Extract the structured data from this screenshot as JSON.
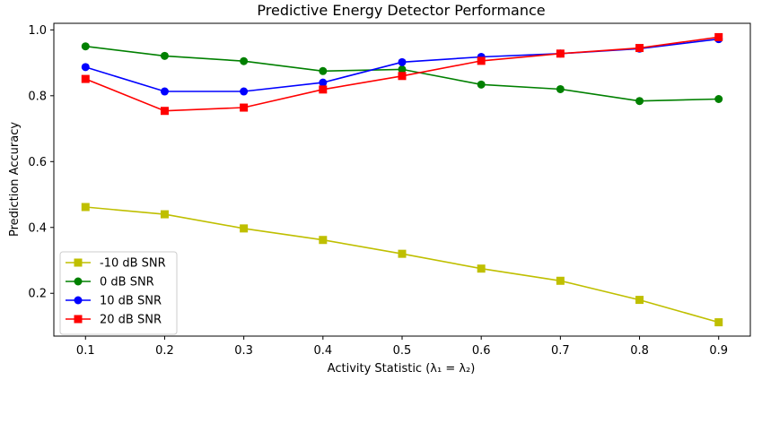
{
  "chart_data": {
    "type": "line",
    "title": "Predictive Energy Detector Performance",
    "xlabel": "Activity Statistic (λ₁ = λ₂)",
    "ylabel": "Prediction Accuracy",
    "x": [
      0.1,
      0.2,
      0.3,
      0.4,
      0.5,
      0.6,
      0.7,
      0.8,
      0.9
    ],
    "x_tick_labels": [
      "0.1",
      "0.2",
      "0.3",
      "0.4",
      "0.5",
      "0.6",
      "0.7",
      "0.8",
      "0.9"
    ],
    "y_tick_values": [
      0.2,
      0.4,
      0.6,
      0.8,
      1.0
    ],
    "y_tick_labels": [
      "0.2",
      "0.4",
      "0.6",
      "0.8",
      "1.0"
    ],
    "xlim": [
      0.06,
      0.94
    ],
    "ylim": [
      0.07,
      1.02
    ],
    "grid": false,
    "legend_position": "lower-left",
    "series": [
      {
        "name": "-10 dB SNR",
        "color": "#bfbf00",
        "marker": "square",
        "values": [
          0.462,
          0.44,
          0.397,
          0.362,
          0.32,
          0.275,
          0.238,
          0.18,
          0.112
        ]
      },
      {
        "name": "0 dB SNR",
        "color": "#008000",
        "marker": "circle",
        "values": [
          0.95,
          0.921,
          0.905,
          0.875,
          0.88,
          0.834,
          0.82,
          0.784,
          0.79
        ]
      },
      {
        "name": "10 dB SNR",
        "color": "#0000ff",
        "marker": "circle",
        "values": [
          0.887,
          0.813,
          0.813,
          0.84,
          0.902,
          0.918,
          0.928,
          0.943,
          0.972
        ]
      },
      {
        "name": "20 dB SNR",
        "color": "#ff0000",
        "marker": "square",
        "values": [
          0.851,
          0.754,
          0.764,
          0.819,
          0.86,
          0.906,
          0.928,
          0.945,
          0.978
        ]
      }
    ]
  }
}
